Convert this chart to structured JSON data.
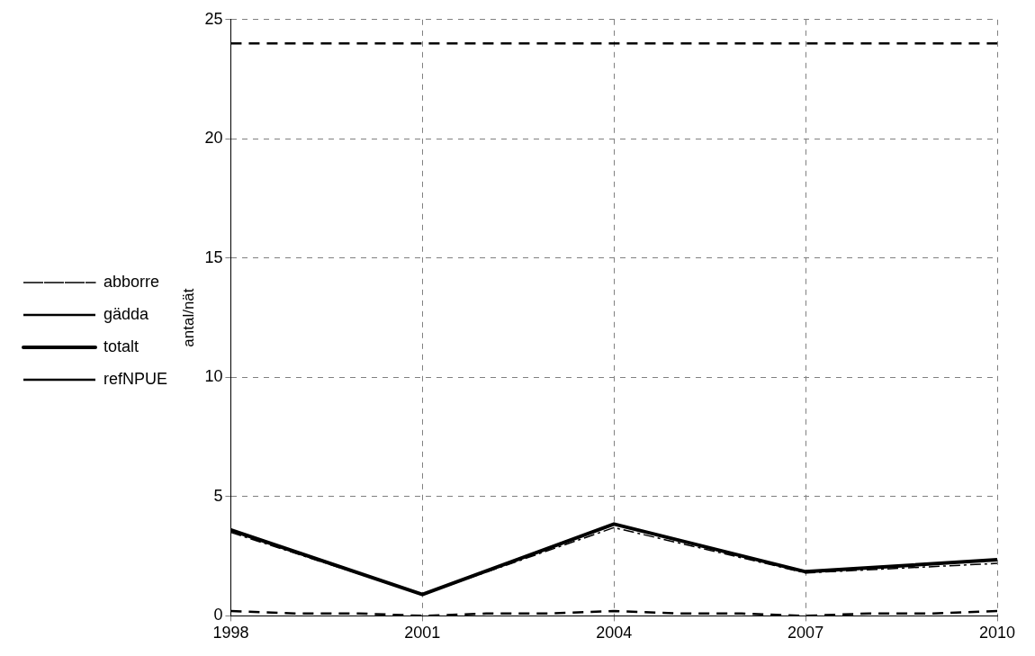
{
  "chart_data": {
    "type": "line",
    "ylabel": "antal/nät",
    "xlim": [
      1998,
      2010
    ],
    "xticks": [
      1998,
      2001,
      2004,
      2007,
      2010
    ],
    "ylim": [
      0,
      25
    ],
    "yticks": [
      0,
      5,
      10,
      15,
      20,
      25
    ],
    "grid": true,
    "legend": "left",
    "marker": "none",
    "series": [
      {
        "name": "abborre",
        "color": "#000000",
        "line_style": "dashdot",
        "x": [
          1998,
          2001,
          2004,
          2007,
          2010
        ],
        "values": [
          3.5,
          0.9,
          3.7,
          1.8,
          2.2
        ]
      },
      {
        "name": "gädda",
        "color": "#000000",
        "line_style": "dashed",
        "x": [
          1998,
          1999,
          2000,
          2001,
          2002,
          2003,
          2004,
          2005,
          2006,
          2007,
          2008,
          2009,
          2010
        ],
        "values": [
          0.2,
          0.1,
          0.1,
          0,
          0.1,
          0.1,
          0.2,
          0.1,
          0.1,
          0,
          0.1,
          0.1,
          0.2
        ]
      },
      {
        "name": "totalt",
        "color": "#000000",
        "line_style": "solid",
        "x": [
          1998,
          2001,
          2004,
          2007,
          2010
        ],
        "values": [
          3.6,
          0.9,
          3.85,
          1.85,
          2.35
        ]
      },
      {
        "name": "refNPUE",
        "color": "#000000",
        "line_style": "dashed",
        "x": [
          1998,
          2010
        ],
        "values": [
          24,
          24
        ]
      }
    ]
  }
}
